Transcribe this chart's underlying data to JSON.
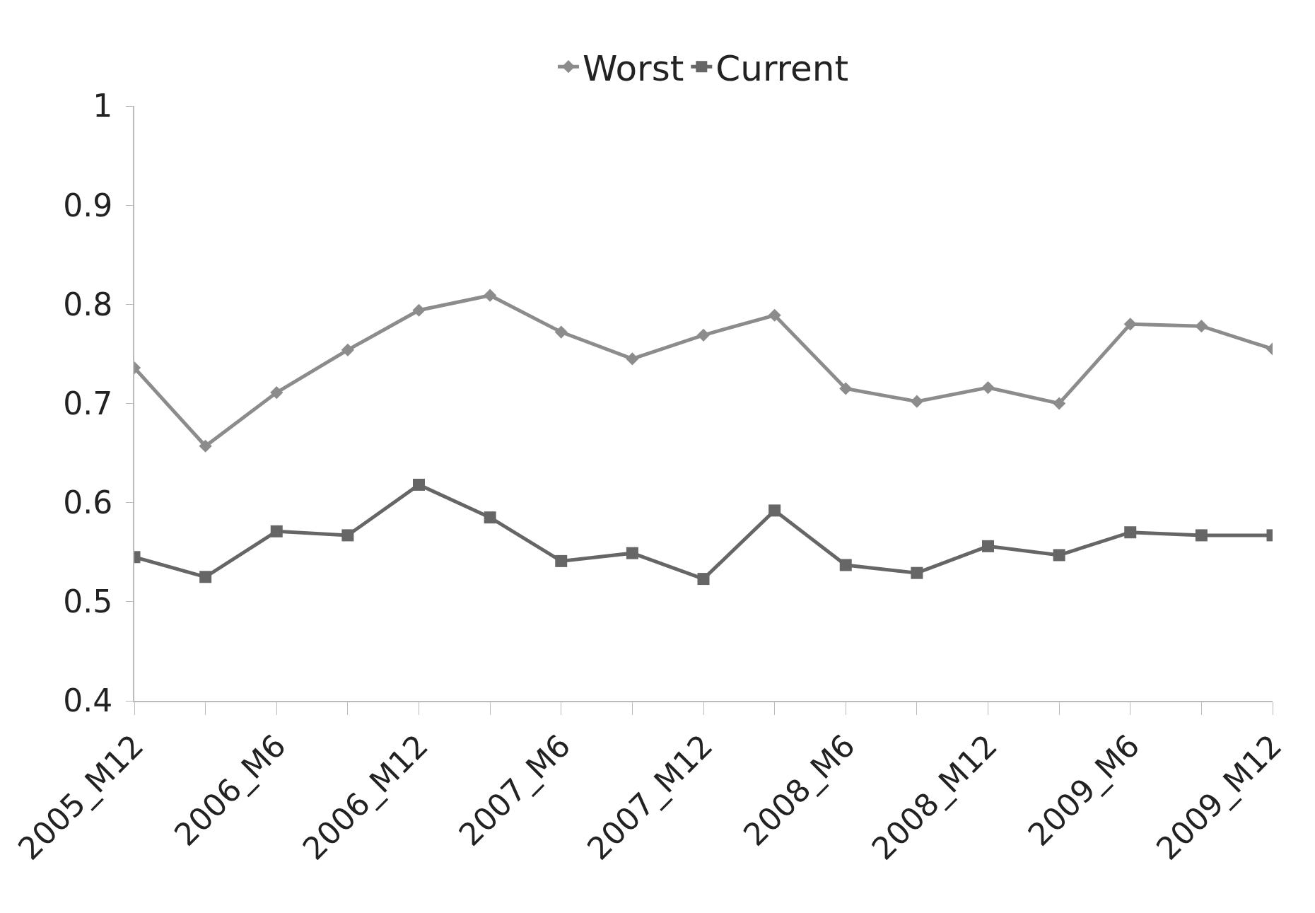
{
  "chart_data": {
    "type": "line",
    "categories": [
      "2005_M12",
      null,
      "2006_M6",
      null,
      "2006_M12",
      null,
      "2007_M6",
      null,
      "2007_M12",
      null,
      "2008_M6",
      null,
      "2008_M12",
      null,
      "2009_M6",
      null,
      "2009_M12"
    ],
    "series": [
      {
        "name": "Worst",
        "color": "#8c8c8c",
        "marker": "diamond",
        "values": [
          0.736,
          0.657,
          0.711,
          0.754,
          0.794,
          0.809,
          0.772,
          0.745,
          0.769,
          0.789,
          0.715,
          0.702,
          0.716,
          0.7,
          0.78,
          0.778,
          0.755
        ]
      },
      {
        "name": "Current",
        "color": "#666666",
        "marker": "square",
        "values": [
          0.545,
          0.525,
          0.571,
          0.567,
          0.618,
          0.585,
          0.541,
          0.549,
          0.523,
          0.592,
          0.537,
          0.529,
          0.556,
          0.547,
          0.57,
          0.567,
          0.567
        ]
      }
    ],
    "ylim": [
      0.4,
      1
    ],
    "yticks": [
      {
        "value": 0.4,
        "label": "0.4"
      },
      {
        "value": 0.5,
        "label": "0.5"
      },
      {
        "value": 0.6,
        "label": "0.6"
      },
      {
        "value": 0.7,
        "label": "0.7"
      },
      {
        "value": 0.8,
        "label": "0.8"
      },
      {
        "value": 0.9,
        "label": "0.9"
      },
      {
        "value": 1,
        "label": "1"
      }
    ],
    "legend": "top"
  }
}
